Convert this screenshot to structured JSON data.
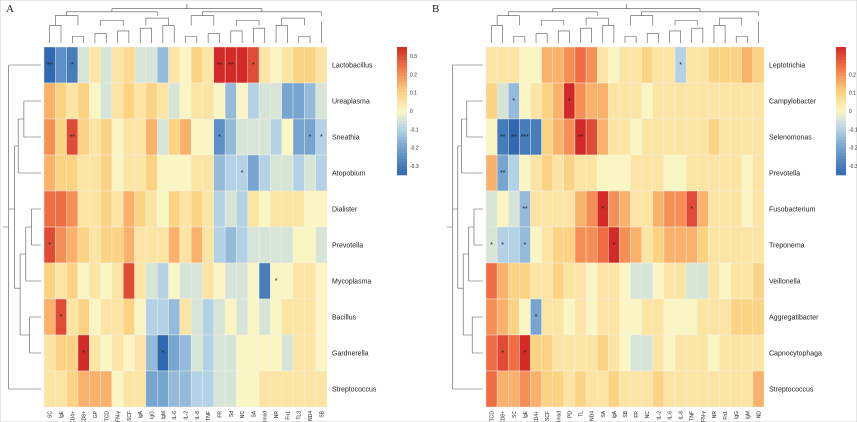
{
  "chart_data": [
    {
      "type": "heatmap",
      "panel_label": "A",
      "rows": [
        "Lactobacillus",
        "Ureaplasma",
        "Sneathia",
        "Atopobium",
        "Dialister",
        "Prevotella",
        "Mycoplasma",
        "Bacillus",
        "Gardnerella",
        "Streptococcus"
      ],
      "cols": [
        "SC",
        "IgE",
        "CD4+",
        "CD8+",
        "GP",
        "TCD",
        "IFN-γ",
        "SCF",
        "IgA",
        "IgG",
        "IgM",
        "IL-6",
        "IL-2",
        "IL-8",
        "TNF",
        "FR",
        "Sd",
        "NC",
        "SA",
        "Rmsd",
        "NR",
        "Fn1",
        "TL3",
        "ND4",
        "SB"
      ],
      "values": [
        [
          -0.35,
          -0.25,
          -0.3,
          -0.05,
          0.05,
          -0.05,
          0.05,
          0.08,
          -0.05,
          -0.05,
          -0.15,
          0.05,
          0.0,
          0.1,
          0.05,
          0.35,
          0.4,
          0.35,
          0.3,
          0.05,
          0.0,
          0.05,
          0.1,
          0.1,
          0.05
        ],
        [
          0.15,
          0.1,
          0.05,
          0.1,
          0.0,
          -0.05,
          0.05,
          0.1,
          0.05,
          0.1,
          0.05,
          -0.05,
          0.0,
          0.05,
          0.05,
          0.0,
          -0.15,
          0.0,
          -0.1,
          -0.05,
          -0.05,
          -0.2,
          -0.2,
          -0.15,
          -0.05
        ],
        [
          0.2,
          0.1,
          0.3,
          0.1,
          0.05,
          0.1,
          0.0,
          0.05,
          0.05,
          0.15,
          -0.05,
          0.1,
          0.15,
          0.0,
          0.0,
          -0.25,
          -0.15,
          -0.05,
          -0.05,
          -0.05,
          -0.1,
          0.0,
          -0.2,
          -0.2,
          -0.1
        ],
        [
          0.15,
          0.1,
          0.1,
          0.05,
          0.05,
          0.1,
          0.0,
          0.05,
          0.05,
          0.1,
          0.0,
          0.0,
          0.0,
          0.05,
          0.05,
          -0.15,
          -0.1,
          -0.1,
          -0.2,
          -0.1,
          -0.05,
          -0.05,
          -0.1,
          -0.05,
          -0.1
        ],
        [
          0.25,
          0.25,
          0.2,
          0.05,
          0.05,
          0.1,
          0.05,
          0.15,
          0.1,
          0.05,
          0.0,
          0.1,
          0.05,
          0.1,
          0.05,
          -0.1,
          -0.05,
          -0.1,
          0.05,
          0.0,
          0.05,
          0.05,
          0.05,
          0.0,
          0.0
        ],
        [
          0.3,
          0.2,
          0.15,
          0.1,
          0.05,
          0.1,
          0.1,
          0.15,
          0.05,
          0.05,
          0.05,
          0.15,
          0.05,
          0.15,
          0.05,
          -0.1,
          -0.15,
          -0.1,
          -0.05,
          -0.05,
          -0.05,
          -0.05,
          0.0,
          0.0,
          -0.05
        ],
        [
          0.1,
          0.05,
          0.1,
          0.0,
          0.05,
          0.0,
          0.05,
          0.3,
          0.05,
          -0.05,
          -0.1,
          0.0,
          -0.05,
          -0.05,
          0.05,
          0.0,
          -0.05,
          -0.05,
          0.0,
          -0.3,
          0.0,
          0.0,
          0.05,
          0.05,
          0.0
        ],
        [
          0.15,
          0.3,
          0.05,
          0.1,
          0.0,
          0.05,
          0.05,
          0.1,
          0.0,
          -0.1,
          -0.1,
          -0.15,
          0.05,
          -0.05,
          -0.1,
          -0.05,
          0.0,
          -0.05,
          0.0,
          -0.05,
          0.0,
          0.05,
          0.05,
          0.05,
          0.0
        ],
        [
          0.05,
          0.1,
          0.1,
          0.35,
          0.05,
          0.0,
          0.05,
          0.0,
          0.05,
          -0.15,
          -0.35,
          -0.2,
          -0.15,
          -0.05,
          -0.1,
          -0.05,
          -0.05,
          0.0,
          0.0,
          0.0,
          0.0,
          -0.05,
          0.05,
          0.05,
          0.0
        ],
        [
          0.05,
          0.05,
          0.1,
          0.15,
          0.15,
          0.15,
          0.0,
          0.05,
          0.05,
          -0.2,
          -0.2,
          -0.15,
          -0.15,
          -0.1,
          -0.1,
          -0.05,
          -0.05,
          0.0,
          0.0,
          0.05,
          0.05,
          0.05,
          0.05,
          0.05,
          0.05
        ]
      ],
      "stars": [
        {
          "r": 0,
          "c": 0,
          "t": "**"
        },
        {
          "r": 0,
          "c": 2,
          "t": "*"
        },
        {
          "r": 0,
          "c": 15,
          "t": "**"
        },
        {
          "r": 0,
          "c": 16,
          "t": "**"
        },
        {
          "r": 0,
          "c": 18,
          "t": "*"
        },
        {
          "r": 2,
          "c": 2,
          "t": "**"
        },
        {
          "r": 2,
          "c": 15,
          "t": "*"
        },
        {
          "r": 2,
          "c": 23,
          "t": "*"
        },
        {
          "r": 2,
          "c": 24,
          "t": "*"
        },
        {
          "r": 3,
          "c": 17,
          "t": "*"
        },
        {
          "r": 5,
          "c": 0,
          "t": "*"
        },
        {
          "r": 6,
          "c": 20,
          "t": "*"
        },
        {
          "r": 7,
          "c": 1,
          "t": "*"
        },
        {
          "r": 8,
          "c": 3,
          "t": "*"
        },
        {
          "r": 8,
          "c": 10,
          "t": "*"
        }
      ],
      "legend": {
        "ticks": [
          "0.3",
          "0.2",
          "0.1",
          "0",
          "-0.1",
          "-0.2",
          "-0.3"
        ],
        "range": [
          -0.35,
          0.35
        ]
      }
    },
    {
      "type": "heatmap",
      "panel_label": "B",
      "rows": [
        "Leptotrichia",
        "Campylobacter",
        "Selenomonas",
        "Prevotella",
        "Fusobacterium",
        "Treponema",
        "Veillonella",
        "Aggregatibacter",
        "Capnocytophaga",
        "Streptococcus"
      ],
      "cols": [
        "TCD",
        "CD8+",
        "SC",
        "IgE",
        "CD4+",
        "SCF",
        "Rmsd",
        "PD",
        "TL",
        "ND4",
        "SA",
        "IgA",
        "SB",
        "FR",
        "NC",
        "IL-2",
        "IL-6",
        "IL-8",
        "TNF",
        "IFN-γ",
        "NR",
        "Fn1",
        "IgG",
        "IgM",
        "ND"
      ],
      "values": [
        [
          0.05,
          0.05,
          0.05,
          0.0,
          0.0,
          0.15,
          0.15,
          0.2,
          0.25,
          0.2,
          0.05,
          0.0,
          0.05,
          0.05,
          0.1,
          0.05,
          0.05,
          -0.1,
          0.05,
          0.05,
          0.1,
          0.1,
          0.1,
          0.15,
          0.1
        ],
        [
          0.1,
          -0.05,
          -0.15,
          0.0,
          0.05,
          0.1,
          0.15,
          0.35,
          0.2,
          0.15,
          0.15,
          0.05,
          0.05,
          0.05,
          0.0,
          0.05,
          0.05,
          0.05,
          0.05,
          0.05,
          0.05,
          0.05,
          0.05,
          0.05,
          0.05
        ],
        [
          0.0,
          -0.3,
          -0.35,
          -0.3,
          -0.3,
          0.1,
          0.15,
          0.2,
          0.4,
          0.3,
          0.15,
          0.05,
          0.05,
          0.0,
          0.05,
          0.05,
          0.05,
          0.05,
          0.05,
          0.05,
          0.1,
          0.05,
          0.05,
          0.05,
          0.05
        ],
        [
          0.15,
          -0.2,
          -0.1,
          0.0,
          0.05,
          0.1,
          0.05,
          0.1,
          0.05,
          0.05,
          0.0,
          0.0,
          0.0,
          0.05,
          0.05,
          0.05,
          0.0,
          0.0,
          0.05,
          0.05,
          0.05,
          0.05,
          0.05,
          0.0,
          0.05
        ],
        [
          -0.05,
          0.0,
          -0.05,
          -0.15,
          0.05,
          0.05,
          0.05,
          0.05,
          0.15,
          0.2,
          0.35,
          0.2,
          0.15,
          0.05,
          0.05,
          0.15,
          0.2,
          0.2,
          0.3,
          0.15,
          0.05,
          0.05,
          0.05,
          0.0,
          0.05
        ],
        [
          -0.05,
          -0.1,
          -0.1,
          -0.15,
          0.0,
          0.05,
          0.1,
          0.1,
          0.2,
          0.2,
          0.25,
          0.35,
          0.2,
          0.15,
          0.05,
          0.1,
          0.15,
          0.15,
          0.15,
          0.1,
          0.05,
          0.05,
          0.05,
          0.05,
          0.05
        ],
        [
          0.25,
          0.15,
          0.1,
          0.1,
          0.05,
          0.05,
          0.1,
          0.05,
          0.05,
          0.0,
          0.05,
          0.05,
          0.0,
          -0.05,
          -0.05,
          0.0,
          0.05,
          0.05,
          -0.05,
          -0.05,
          0.05,
          0.0,
          0.05,
          0.05,
          0.1
        ],
        [
          0.2,
          0.15,
          0.1,
          0.0,
          -0.2,
          0.05,
          0.05,
          0.0,
          0.05,
          0.0,
          0.05,
          0.05,
          0.0,
          0.0,
          0.05,
          0.05,
          0.0,
          0.0,
          0.0,
          0.05,
          0.05,
          0.05,
          0.1,
          0.1,
          0.1
        ],
        [
          0.25,
          0.3,
          0.25,
          0.35,
          0.1,
          0.1,
          0.05,
          0.05,
          0.05,
          0.05,
          0.1,
          0.05,
          0.0,
          -0.05,
          -0.05,
          0.05,
          0.0,
          0.05,
          0.05,
          0.05,
          0.0,
          0.05,
          0.05,
          0.05,
          0.05
        ],
        [
          0.25,
          0.15,
          0.15,
          0.2,
          0.15,
          0.1,
          0.1,
          0.05,
          0.1,
          0.05,
          0.05,
          0.1,
          0.05,
          0.05,
          0.05,
          0.1,
          0.05,
          0.05,
          0.05,
          0.05,
          0.05,
          0.05,
          0.05,
          0.05,
          0.15
        ]
      ],
      "stars": [
        {
          "r": 0,
          "c": 17,
          "t": "*"
        },
        {
          "r": 1,
          "c": 2,
          "t": "*"
        },
        {
          "r": 1,
          "c": 7,
          "t": "*"
        },
        {
          "r": 2,
          "c": 1,
          "t": "**"
        },
        {
          "r": 2,
          "c": 2,
          "t": "**"
        },
        {
          "r": 2,
          "c": 3,
          "t": "***"
        },
        {
          "r": 2,
          "c": 8,
          "t": "**"
        },
        {
          "r": 3,
          "c": 1,
          "t": "**"
        },
        {
          "r": 4,
          "c": 3,
          "t": "**"
        },
        {
          "r": 4,
          "c": 10,
          "t": "*"
        },
        {
          "r": 4,
          "c": 18,
          "t": "*"
        },
        {
          "r": 5,
          "c": 0,
          "t": "*"
        },
        {
          "r": 5,
          "c": 1,
          "t": "*"
        },
        {
          "r": 5,
          "c": 3,
          "t": "*"
        },
        {
          "r": 5,
          "c": 11,
          "t": "*"
        },
        {
          "r": 7,
          "c": 4,
          "t": "*"
        },
        {
          "r": 8,
          "c": 1,
          "t": "*"
        },
        {
          "r": 8,
          "c": 3,
          "t": "*"
        }
      ],
      "legend": {
        "ticks": [
          "0.2",
          "0.1",
          "0",
          "-0.1",
          "-0.2",
          "-0.3"
        ],
        "range": [
          -0.35,
          0.35
        ]
      }
    }
  ]
}
